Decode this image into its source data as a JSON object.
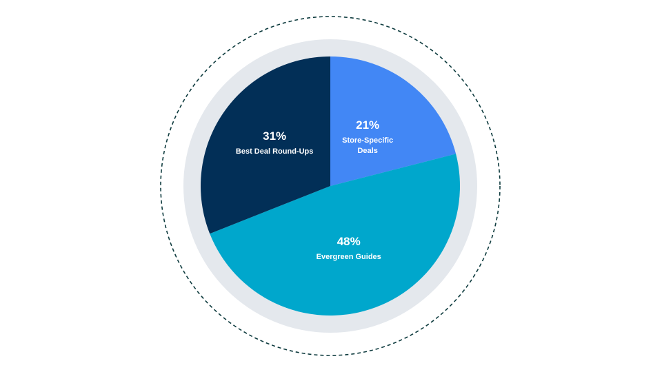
{
  "chart_data": {
    "type": "pie",
    "title": "",
    "slices": [
      {
        "label_lines": [
          "Store-Specific",
          "Deals"
        ],
        "value": 21,
        "value_label": "21%",
        "color": "#4287f5"
      },
      {
        "label_lines": [
          "Evergreen Guides"
        ],
        "value": 48,
        "value_label": "48%",
        "color": "#00a7cc"
      },
      {
        "label_lines": [
          "Best Deal Round-Ups"
        ],
        "value": 31,
        "value_label": "31%",
        "color": "#022f57"
      }
    ],
    "start_angle": "12 o'clock",
    "direction": "clockwise",
    "legend": "none",
    "ring_color": "#e4e8ed",
    "dashed_outline_color": "#0e3b3e"
  }
}
